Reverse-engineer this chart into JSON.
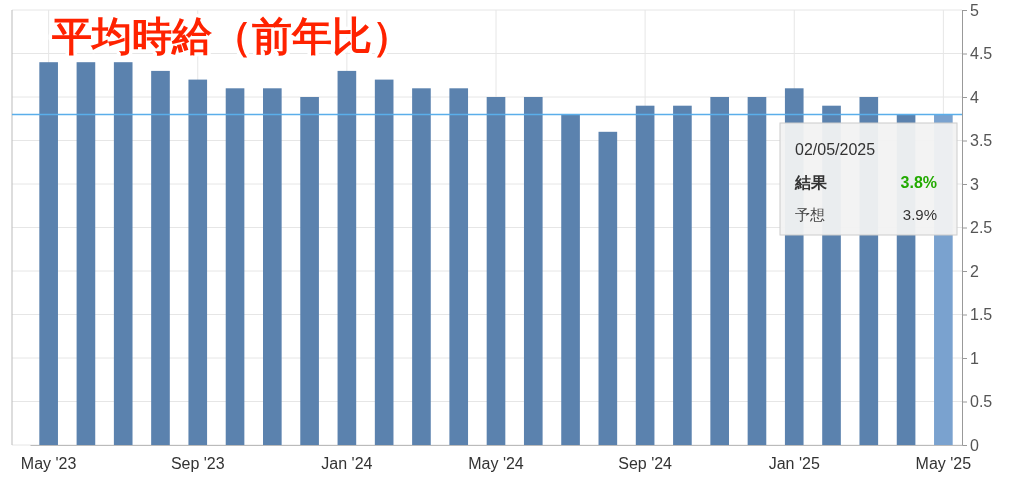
{
  "chart_data": {
    "type": "bar",
    "title": "平均時給（前年比）",
    "categories": [
      "May '23",
      null,
      null,
      null,
      "Sep '23",
      null,
      null,
      null,
      "Jan '24",
      null,
      null,
      null,
      "May '24",
      null,
      null,
      null,
      "Sep '24",
      null,
      null,
      null,
      "Jan '25",
      null,
      null,
      null,
      "May '25"
    ],
    "values": [
      4.4,
      4.4,
      4.4,
      4.3,
      4.2,
      4.1,
      4.1,
      4.0,
      4.3,
      4.2,
      4.1,
      4.1,
      4.0,
      4.0,
      3.8,
      3.6,
      3.9,
      3.9,
      4.0,
      4.0,
      4.1,
      3.9,
      4.0,
      3.8,
      3.8
    ],
    "colors": [
      "#5b82ae",
      "#5b82ae",
      "#5b82ae",
      "#5b82ae",
      "#5b82ae",
      "#5b82ae",
      "#5b82ae",
      "#5b82ae",
      "#5b82ae",
      "#5b82ae",
      "#5b82ae",
      "#5b82ae",
      "#5b82ae",
      "#5b82ae",
      "#5b82ae",
      "#5b82ae",
      "#5b82ae",
      "#5b82ae",
      "#5b82ae",
      "#5b82ae",
      "#5b82ae",
      "#5b82ae",
      "#5b82ae",
      "#5b82ae",
      "#7aa2cf"
    ],
    "ylim": [
      0,
      5
    ],
    "yticks": [
      0,
      0.5,
      1,
      1.5,
      2,
      2.5,
      3,
      3.5,
      4,
      4.5,
      5
    ],
    "grid": true,
    "ref_lines": [
      {
        "axis": "y",
        "value": 3.8,
        "color": "#5aaeea"
      }
    ],
    "annotations": [
      "02/05/2025",
      "結果",
      "3.8%",
      "予想",
      "3.9%"
    ]
  }
}
